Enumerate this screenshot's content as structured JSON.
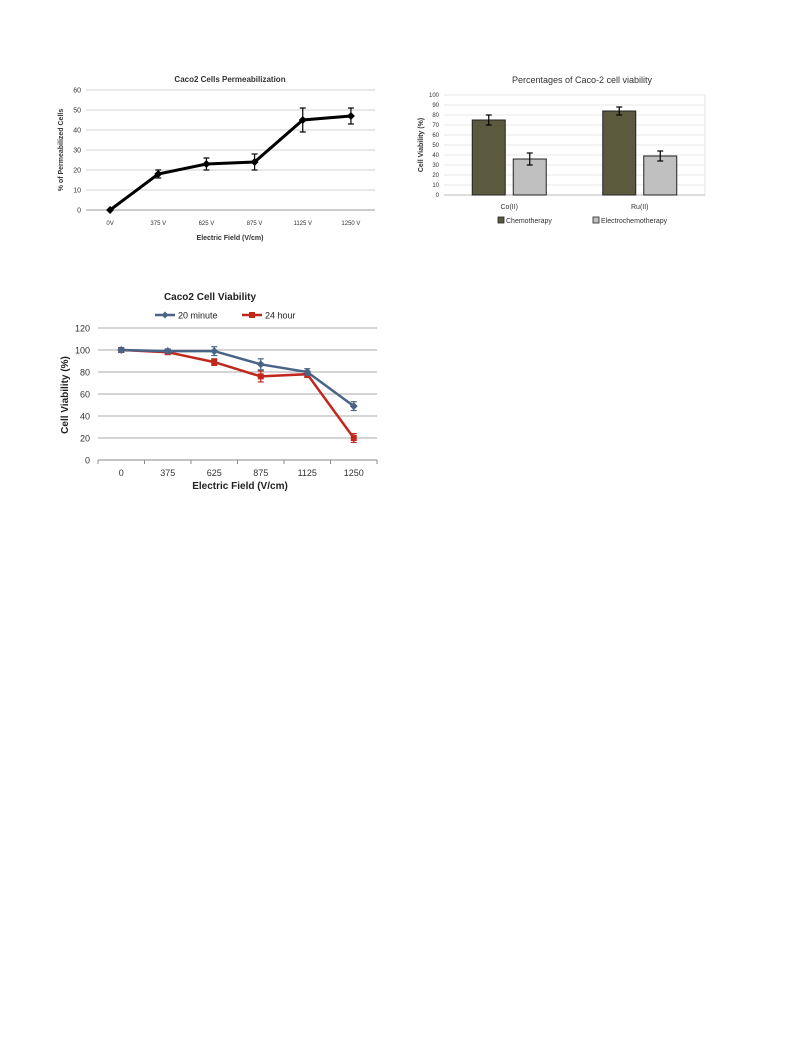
{
  "chart_data": [
    {
      "type": "line",
      "title": "Caco2 Cells Permeabilization",
      "xlabel": "Electric Field (V/cm)",
      "ylabel": "% of Permeabilized Cells",
      "categories": [
        "0V",
        "375 V",
        "625 V",
        "875 V",
        "1125 V",
        "1250 V"
      ],
      "yticks": [
        "0",
        "10",
        "20",
        "30",
        "40",
        "50",
        "60"
      ],
      "ylim": [
        0,
        60
      ],
      "grid": true,
      "series": [
        {
          "name": "",
          "values": [
            0,
            18,
            23,
            24,
            45,
            47
          ],
          "errors": [
            0,
            2,
            3,
            4,
            6,
            4
          ],
          "color": "#000000"
        }
      ]
    },
    {
      "type": "bar",
      "title": "Percentages of Caco-2 cell viability",
      "xlabel": "",
      "ylabel": "Cell Viability (%)",
      "categories": [
        "Co(II)",
        "Ru(II)"
      ],
      "yticks": [
        "0",
        "10",
        "20",
        "30",
        "40",
        "50",
        "60",
        "70",
        "80",
        "90",
        "100"
      ],
      "ylim": [
        0,
        100
      ],
      "grid": true,
      "legend": "bottom",
      "series": [
        {
          "name": "Chemotherapy",
          "values": [
            75,
            84
          ],
          "errors": [
            5,
            4
          ],
          "color": "#5c5a3e"
        },
        {
          "name": "Electrochemotherapy",
          "values": [
            36,
            39
          ],
          "errors": [
            6,
            5
          ],
          "color": "#c0c0c0"
        }
      ]
    },
    {
      "type": "line",
      "title": "Caco2 Cell Viability",
      "xlabel": "Electric Field (V/cm)",
      "ylabel": "Cell Viability (%)",
      "categories": [
        "0",
        "375",
        "625",
        "875",
        "1125",
        "1250"
      ],
      "yticks": [
        "0",
        "20",
        "40",
        "60",
        "80",
        "100",
        "120"
      ],
      "ylim": [
        0,
        120
      ],
      "grid": true,
      "legend": "top",
      "series": [
        {
          "name": "20 minute",
          "values": [
            100,
            99,
            99,
            87,
            80,
            49
          ],
          "errors": [
            2,
            2,
            4,
            5,
            3,
            4
          ],
          "color": "#4a6488"
        },
        {
          "name": "24 hour",
          "values": [
            100,
            98,
            89,
            76,
            78,
            20
          ],
          "errors": [
            2,
            2,
            3,
            5,
            3,
            4
          ],
          "color": "#c0281c"
        }
      ]
    }
  ]
}
